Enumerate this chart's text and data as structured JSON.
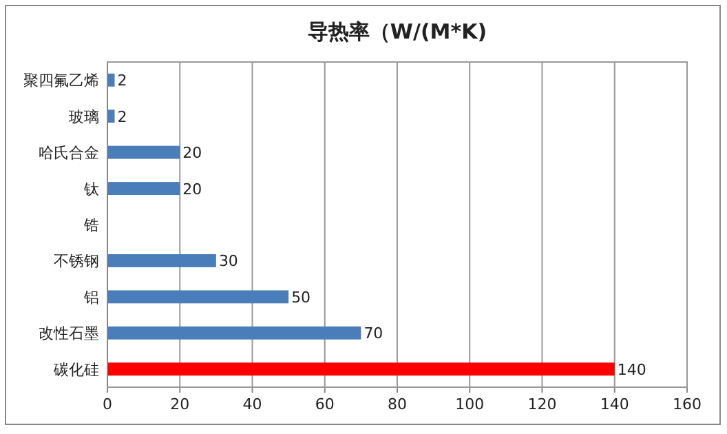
{
  "chart_data": {
    "type": "bar",
    "orientation": "horizontal",
    "title": "导热率（W/(M*K)",
    "categories": [
      "聚四氟乙烯",
      "玻璃",
      "哈氏合金",
      "钛",
      "锆",
      "不锈钢",
      "铝",
      "改性石墨",
      "碳化硅"
    ],
    "values": [
      2,
      2,
      20,
      20,
      null,
      30,
      50,
      70,
      140
    ],
    "colors": [
      "#4a7ebb",
      "#4a7ebb",
      "#4a7ebb",
      "#4a7ebb",
      null,
      "#4a7ebb",
      "#4a7ebb",
      "#4a7ebb",
      "#ff0000"
    ],
    "xlim": [
      0,
      160
    ],
    "xticks": [
      0,
      20,
      40,
      60,
      80,
      100,
      120,
      140,
      160
    ],
    "grid": "x",
    "data_labels": true
  }
}
